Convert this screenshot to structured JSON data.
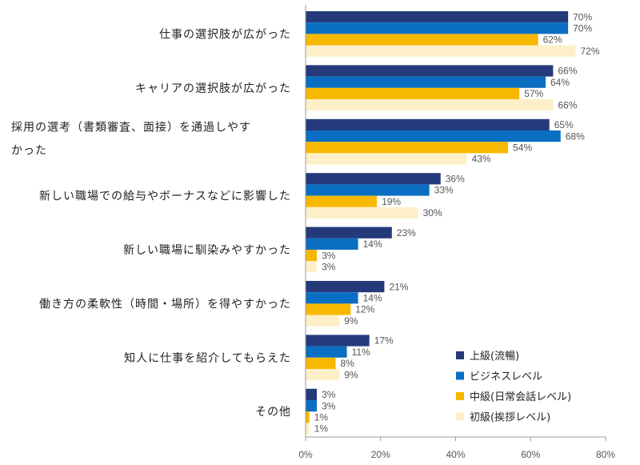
{
  "chart_data": {
    "type": "bar",
    "orientation": "horizontal",
    "categories": [
      [
        "仕事の選択肢が広がった"
      ],
      [
        "キャリアの選択肢が広がった"
      ],
      [
        "採用の選考（書類審査、面接）を通過しやす",
        "かった"
      ],
      [
        "新しい職場での給与やボーナスなどに影響した"
      ],
      [
        "新しい職場に馴染みやすかった"
      ],
      [
        "働き方の柔軟性（時間・場所）を得やすかった"
      ],
      [
        "知人に仕事を紹介してもらえた"
      ],
      [
        "その他"
      ]
    ],
    "series": [
      {
        "name": "上級(流暢)",
        "color": "#243a7a",
        "values": [
          70,
          66,
          65,
          36,
          23,
          21,
          17,
          3
        ]
      },
      {
        "name": "ビジネスレベル",
        "color": "#0a6fc2",
        "values": [
          70,
          64,
          68,
          33,
          14,
          14,
          11,
          3
        ]
      },
      {
        "name": "中級(日常会話レベル)",
        "color": "#f7b800",
        "values": [
          62,
          57,
          54,
          19,
          3,
          12,
          8,
          1
        ]
      },
      {
        "name": "初級(挨拶レベル)",
        "color": "#fdf0c8",
        "values": [
          72,
          66,
          43,
          30,
          3,
          9,
          9,
          1
        ]
      }
    ],
    "value_suffix": "%",
    "xlim": [
      0,
      80
    ],
    "xticks": [
      0,
      20,
      40,
      60,
      80
    ],
    "xtick_labels": [
      "0%",
      "20%",
      "40%",
      "60%",
      "80%"
    ],
    "grid": false,
    "legend_position": "bottom-right",
    "title": "",
    "xlabel": "",
    "ylabel": ""
  }
}
